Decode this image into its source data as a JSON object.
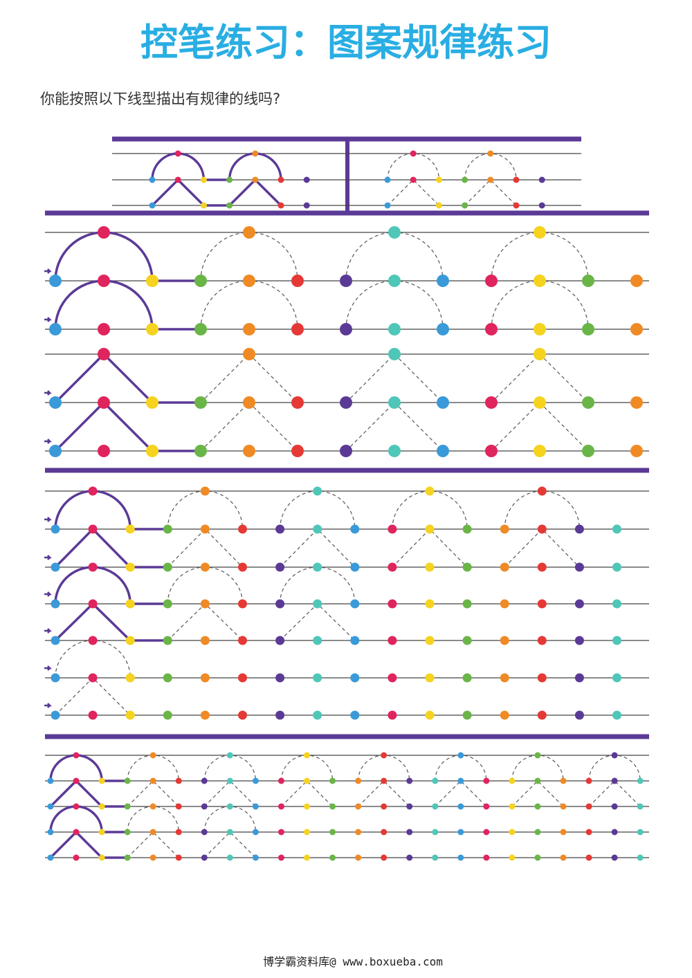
{
  "header": {
    "title": "控笔练习：图案规律练习",
    "instruction": "你能按照以下线型描出有规律的线吗?"
  },
  "footer": "博学霸资料库@ www.boxueba.com"
}
